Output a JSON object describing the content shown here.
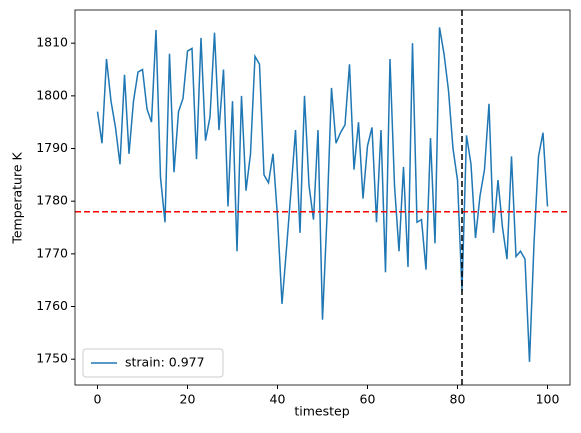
{
  "chart_data": {
    "type": "line",
    "xlabel": "timestep",
    "ylabel": "Temperature K",
    "x": [
      0,
      1,
      2,
      3,
      4,
      5,
      6,
      7,
      8,
      9,
      10,
      11,
      12,
      13,
      14,
      15,
      16,
      17,
      18,
      19,
      20,
      21,
      22,
      23,
      24,
      25,
      26,
      27,
      28,
      29,
      30,
      31,
      32,
      33,
      34,
      35,
      36,
      37,
      38,
      39,
      40,
      41,
      42,
      43,
      44,
      45,
      46,
      47,
      48,
      49,
      50,
      51,
      52,
      53,
      54,
      55,
      56,
      57,
      58,
      59,
      60,
      61,
      62,
      63,
      64,
      65,
      66,
      67,
      68,
      69,
      70,
      71,
      72,
      73,
      74,
      75,
      76,
      77,
      78,
      79,
      80,
      81,
      82,
      83,
      84,
      85,
      86,
      87,
      88,
      89,
      90,
      91,
      92,
      93,
      94,
      95,
      96,
      97,
      98,
      99,
      100
    ],
    "series": [
      {
        "name": "strain: 0.977",
        "color": "#1f77b4",
        "values": [
          1797,
          1791,
          1807,
          1799,
          1794,
          1787,
          1804,
          1789,
          1799,
          1804.5,
          1805,
          1797.5,
          1795,
          1812.5,
          1784.5,
          1776,
          1808,
          1785.5,
          1797,
          1799.5,
          1808.5,
          1809,
          1788,
          1811,
          1791.5,
          1796,
          1812,
          1793.5,
          1805,
          1779,
          1799,
          1770.5,
          1800,
          1782,
          1789,
          1807.5,
          1806,
          1785,
          1783.5,
          1789,
          1777,
          1760.5,
          1771,
          1782,
          1793.5,
          1774,
          1800,
          1783,
          1776.5,
          1793.5,
          1757.5,
          1777,
          1801.5,
          1791,
          1793,
          1794.5,
          1806,
          1786,
          1795,
          1780.5,
          1790.5,
          1794,
          1776,
          1793.5,
          1766.5,
          1807,
          1783,
          1770.5,
          1786.5,
          1767.5,
          1810,
          1776,
          1776.5,
          1767,
          1792,
          1772,
          1813,
          1808,
          1801,
          1790,
          1784,
          1763,
          1792.5,
          1787,
          1773,
          1781,
          1786,
          1798.5,
          1774,
          1784,
          1775,
          1769,
          1788.5,
          1769.5,
          1770.5,
          1769,
          1749.5,
          1772,
          1788.5,
          1793,
          1779
        ]
      }
    ],
    "hlines": [
      {
        "value": 1778,
        "color": "red"
      }
    ],
    "vlines": [
      {
        "value": 81,
        "color": "black"
      }
    ],
    "xlim": [
      -5,
      105
    ],
    "ylim": [
      1745.1,
      1816.3
    ],
    "xticks": [
      0,
      20,
      40,
      60,
      80,
      100
    ],
    "yticks": [
      1750,
      1760,
      1770,
      1780,
      1790,
      1800,
      1810
    ],
    "legend": "lower left"
  }
}
